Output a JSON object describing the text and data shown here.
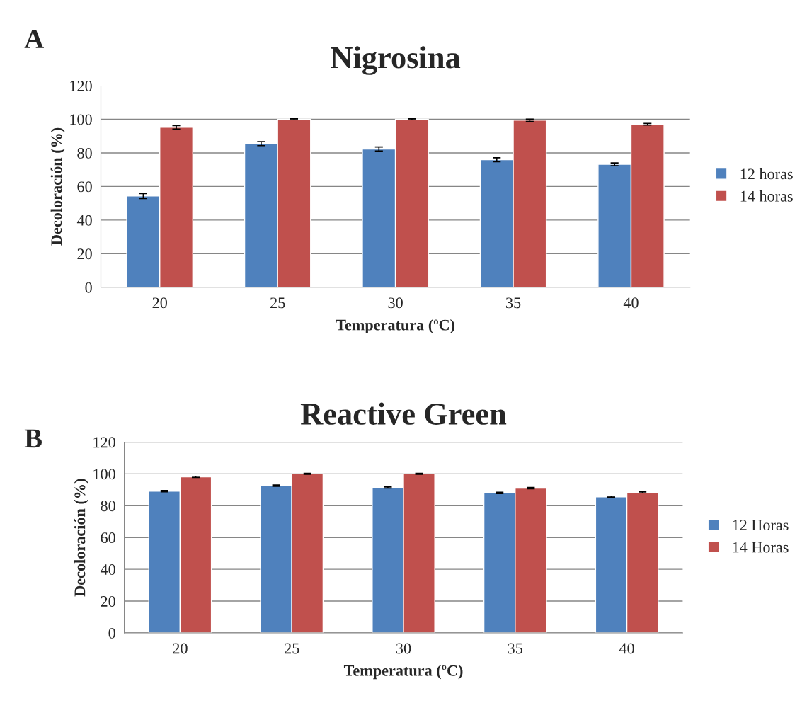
{
  "chart_data": [
    {
      "type": "bar",
      "title": "Nigrosina",
      "xlabel": "Temperatura (ºC)",
      "ylabel": "Decoloración (%)",
      "annotations": [
        "A"
      ],
      "categories": [
        "20",
        "25",
        "30",
        "35",
        "40"
      ],
      "series": [
        {
          "name": "12 horas",
          "color": "#4f81bd",
          "values": [
            54.3,
            85.5,
            82.3,
            75.9,
            73.2
          ],
          "errors": [
            1.5,
            1.2,
            1.2,
            1.2,
            0.8
          ]
        },
        {
          "name": "14 horas",
          "color": "#c0504d",
          "values": [
            95.2,
            100,
            100,
            99.4,
            97
          ],
          "errors": [
            1,
            0.3,
            0.3,
            0.7,
            0.5
          ]
        }
      ],
      "ylim": [
        0,
        120
      ],
      "yticks": [
        0,
        20,
        40,
        60,
        80,
        100,
        120
      ],
      "grid": "y",
      "legend": "right"
    },
    {
      "type": "bar",
      "title": "Reactive Green",
      "xlabel": "Temperatura (ºC)",
      "ylabel": "Decoloración (%)",
      "annotations": [
        "B"
      ],
      "categories": [
        "20",
        "25",
        "30",
        "35",
        "40"
      ],
      "series": [
        {
          "name": "12 Horas",
          "color": "#4f81bd",
          "values": [
            89.1,
            92.6,
            91.5,
            88,
            85.6
          ],
          "errors": [
            0.4,
            0.4,
            0.4,
            0.4,
            0.4
          ]
        },
        {
          "name": "14 Horas",
          "color": "#c0504d",
          "values": [
            98.1,
            100,
            100,
            91,
            88.5
          ],
          "errors": [
            0.4,
            0.3,
            0.3,
            0.4,
            0.4
          ]
        }
      ],
      "ylim": [
        0,
        120
      ],
      "yticks": [
        0,
        20,
        40,
        60,
        80,
        100,
        120
      ],
      "grid": "y",
      "legend": "right"
    }
  ]
}
